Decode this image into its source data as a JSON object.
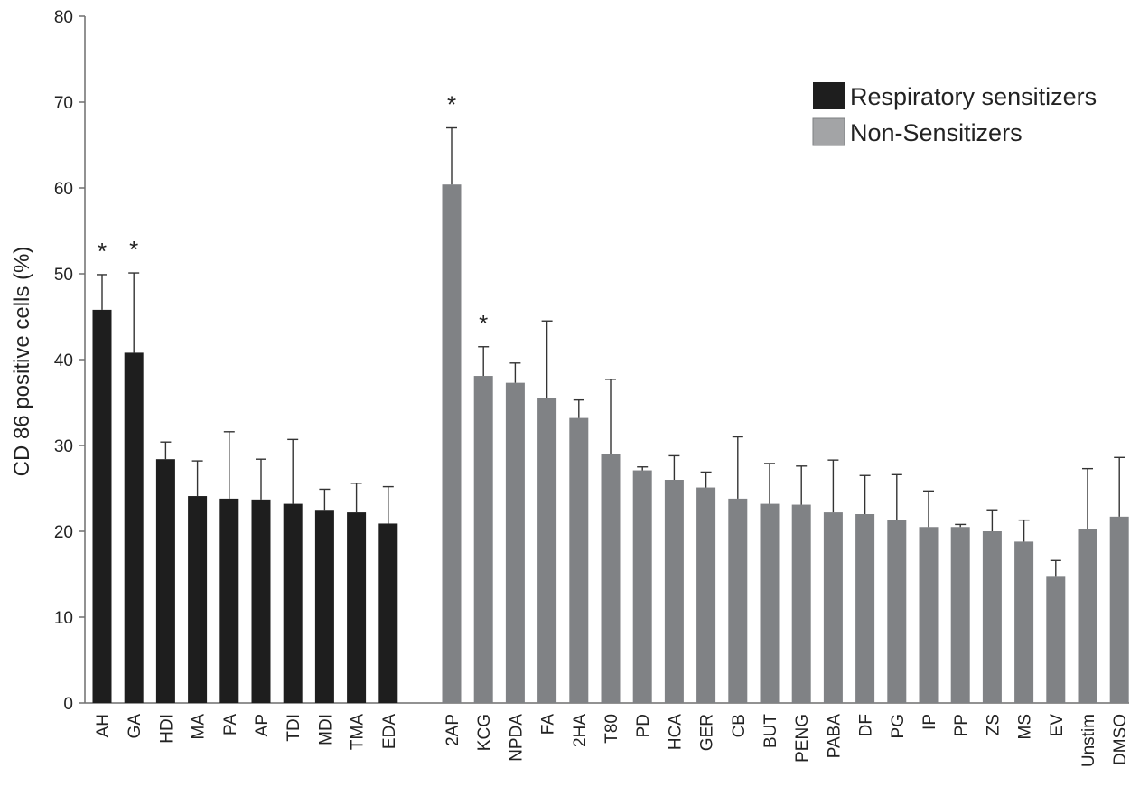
{
  "chart_data": {
    "type": "bar",
    "title": "",
    "xlabel": "",
    "ylabel": "CD 86 positive cells (%)",
    "ylim": [
      0,
      80
    ],
    "yticks": [
      0,
      10,
      20,
      30,
      40,
      50,
      60,
      70,
      80
    ],
    "grid": false,
    "legend_position": "top-right",
    "series": [
      {
        "name": "Respiratory sensitizers",
        "color": "#1e1e1e",
        "categories": [
          "AH",
          "GA",
          "HDI",
          "MA",
          "PA",
          "AP",
          "TDI",
          "MDI",
          "TMA",
          "EDA"
        ],
        "values": [
          45.8,
          40.8,
          28.4,
          24.1,
          23.8,
          23.7,
          23.2,
          22.5,
          22.2,
          20.9
        ],
        "error": [
          4.1,
          9.3,
          2.0,
          4.1,
          7.8,
          4.7,
          7.5,
          2.4,
          3.4,
          4.3
        ],
        "significant": [
          true,
          true,
          false,
          false,
          false,
          false,
          false,
          false,
          false,
          false
        ]
      },
      {
        "name": "Non-Sensitizers",
        "color": "#808285",
        "categories": [
          "2AP",
          "KCG",
          "NPDA",
          "FA",
          "2HA",
          "T80",
          "PD",
          "HCA",
          "GER",
          "CB",
          "BUT",
          "PENG",
          "PABA",
          "DF",
          "PG",
          "IP",
          "PP",
          "ZS",
          "MS",
          "EV",
          "Unstim",
          "DMSO"
        ],
        "values": [
          60.4,
          38.1,
          37.3,
          35.5,
          33.2,
          29.0,
          27.1,
          26.0,
          25.1,
          23.8,
          23.2,
          23.1,
          22.2,
          22.0,
          21.3,
          20.5,
          20.5,
          20.0,
          18.8,
          14.7,
          20.3,
          21.7
        ],
        "error": [
          6.6,
          3.4,
          2.3,
          9.0,
          2.1,
          8.7,
          0.4,
          2.8,
          1.8,
          7.2,
          4.7,
          4.5,
          6.1,
          4.5,
          5.3,
          4.2,
          0.3,
          2.5,
          2.5,
          1.9,
          7.0,
          6.9
        ],
        "significant": [
          true,
          true,
          false,
          false,
          false,
          false,
          false,
          false,
          false,
          false,
          false,
          false,
          false,
          false,
          false,
          false,
          false,
          false,
          false,
          false,
          false,
          false
        ]
      }
    ],
    "significance_marker": "*"
  }
}
